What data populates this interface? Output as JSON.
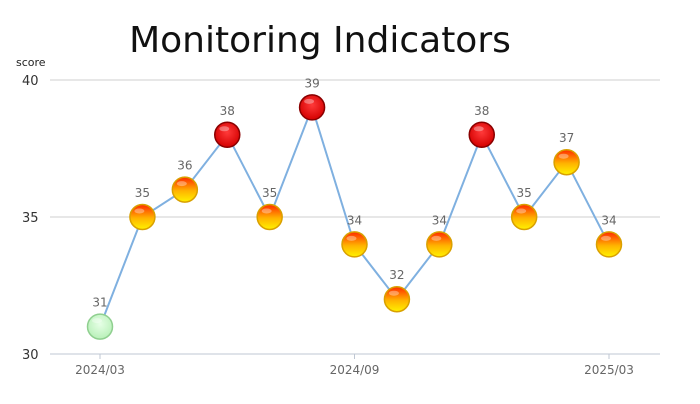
{
  "chart_data": {
    "type": "line",
    "title": "Monitoring Indicators",
    "ylabel": "score",
    "xlabel": "",
    "ylim": [
      30,
      40
    ],
    "yticks": [
      30,
      35,
      40
    ],
    "x": [
      "2024/03",
      "2024/04",
      "2024/05",
      "2024/06",
      "2024/07",
      "2024/08",
      "2024/09",
      "2024/10",
      "2024/11",
      "2024/12",
      "2025/01",
      "2025/02",
      "2025/03"
    ],
    "xtick_labels": [
      "2024/03",
      "2024/09",
      "2025/03"
    ],
    "values": [
      31,
      35,
      36,
      38,
      35,
      39,
      34,
      32,
      34,
      38,
      35,
      37,
      34
    ],
    "grid": true,
    "legend": "none",
    "point_color_scale": [
      {
        "min": 38,
        "color": "#e60000"
      },
      {
        "min": 32,
        "color": "#ffcc00"
      },
      {
        "min": 0,
        "color": "#c8f5c8"
      }
    ],
    "line_color": "#7fb0e0"
  }
}
